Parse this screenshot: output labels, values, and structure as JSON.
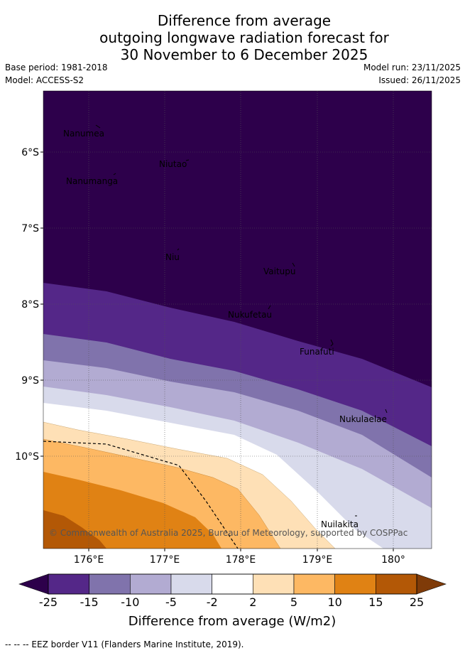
{
  "title": {
    "line1": "Difference from average",
    "line2": "outgoing longwave radiation forecast for",
    "line3": "30 November to 6 December 2025"
  },
  "meta": {
    "base_period": "Base period: 1981-2018",
    "model": "Model: ACCESS-S2",
    "model_run": "Model run: 23/11/2025",
    "issued": "Issued: 26/11/2025"
  },
  "map": {
    "background_color": "#2d004b",
    "latitude_labels": [
      "6°S",
      "7°S",
      "8°S",
      "9°S",
      "10°S"
    ],
    "longitude_labels": [
      "176°E",
      "177°E",
      "178°E",
      "179°E",
      "180°"
    ],
    "places": [
      {
        "name": "Nanumea"
      },
      {
        "name": "Niutao"
      },
      {
        "name": "Nanumanga"
      },
      {
        "name": "Niu"
      },
      {
        "name": "Vaitupu"
      },
      {
        "name": "Nukufetau"
      },
      {
        "name": "Funafuti"
      },
      {
        "name": "Nukulaelae"
      },
      {
        "name": "Nuilakita"
      }
    ],
    "copyright": "© Commonwealth of Australia 2025, Bureau of Meteorology, supported by COSPPac"
  },
  "colorbar": {
    "title": "Difference from average (W/m2)",
    "under_color": "#2d004b",
    "over_color": "#7f3b08",
    "bins": [
      {
        "color": "#542788"
      },
      {
        "color": "#8073ac"
      },
      {
        "color": "#b2abd2"
      },
      {
        "color": "#d8daeb"
      },
      {
        "color": "#ffffff"
      },
      {
        "color": "#fee0b6"
      },
      {
        "color": "#fdb863"
      },
      {
        "color": "#e08214"
      },
      {
        "color": "#b35806"
      }
    ],
    "tick_labels": [
      "-25",
      "-15",
      "-10",
      "-5",
      "-2",
      "2",
      "5",
      "10",
      "15",
      "25"
    ]
  },
  "footer": {
    "legend_text": "--  --  -- EEZ border V11 (Flanders Marine Institute, 2019)."
  }
}
